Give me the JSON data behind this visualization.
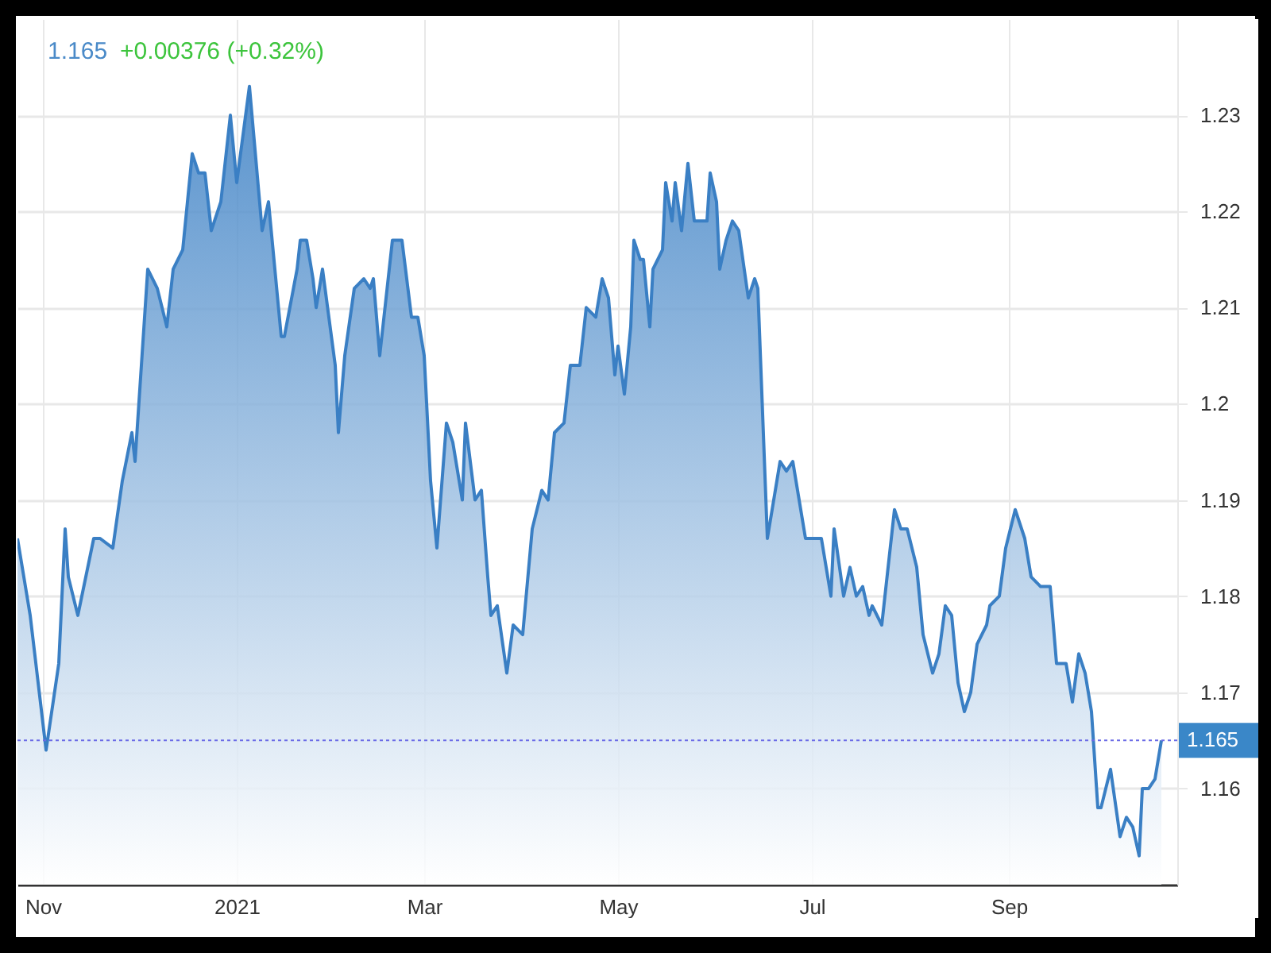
{
  "chart_data": {
    "type": "area",
    "annotations": [
      "1.165",
      "+0.00376 (+0.32%)"
    ],
    "x": [
      "2020-10-24",
      "2020-10-28",
      "2020-11-02",
      "2020-11-06",
      "2020-11-08",
      "2020-11-09",
      "2020-11-12",
      "2020-11-17",
      "2020-11-19",
      "2020-11-23",
      "2020-11-26",
      "2020-11-29",
      "2020-11-30",
      "2020-12-04",
      "2020-12-07",
      "2020-12-10",
      "2020-12-12",
      "2020-12-15",
      "2020-12-18",
      "2020-12-20",
      "2020-12-22",
      "2020-12-24",
      "2020-12-27",
      "2020-12-30",
      "2021-01-01",
      "2021-01-05",
      "2021-01-09",
      "2021-01-11",
      "2021-01-15",
      "2021-01-16",
      "2021-01-20",
      "2021-01-21",
      "2021-01-23",
      "2021-01-25",
      "2021-01-26",
      "2021-01-28",
      "2021-02-01",
      "2021-02-02",
      "2021-02-04",
      "2021-02-07",
      "2021-02-10",
      "2021-02-12",
      "2021-02-13",
      "2021-02-15",
      "2021-02-19",
      "2021-02-22",
      "2021-02-25",
      "2021-02-27",
      "2021-03-01",
      "2021-03-03",
      "2021-03-05",
      "2021-03-08",
      "2021-03-10",
      "2021-03-13",
      "2021-03-14",
      "2021-03-17",
      "2021-03-19",
      "2021-03-21",
      "2021-03-22",
      "2021-03-24",
      "2021-03-27",
      "2021-03-29",
      "2021-04-01",
      "2021-04-04",
      "2021-04-07",
      "2021-04-09",
      "2021-04-11",
      "2021-04-14",
      "2021-04-16",
      "2021-04-19",
      "2021-04-21",
      "2021-04-24",
      "2021-04-26",
      "2021-04-28",
      "2021-04-30",
      "2021-05-01",
      "2021-05-03",
      "2021-05-05",
      "2021-05-06",
      "2021-05-08",
      "2021-05-09",
      "2021-05-11",
      "2021-05-12",
      "2021-05-15",
      "2021-05-16",
      "2021-05-18",
      "2021-05-19",
      "2021-05-21",
      "2021-05-23",
      "2021-05-25",
      "2021-05-29",
      "2021-05-30",
      "2021-06-01",
      "2021-06-02",
      "2021-06-04",
      "2021-06-06",
      "2021-06-08",
      "2021-06-11",
      "2021-06-13",
      "2021-06-14",
      "2021-06-17",
      "2021-06-21",
      "2021-06-23",
      "2021-06-25",
      "2021-06-29",
      "2021-07-02",
      "2021-07-04",
      "2021-07-07",
      "2021-07-08",
      "2021-07-11",
      "2021-07-13",
      "2021-07-15",
      "2021-07-17",
      "2021-07-19",
      "2021-07-20",
      "2021-07-23",
      "2021-07-25",
      "2021-07-27",
      "2021-07-29",
      "2021-07-31",
      "2021-08-03",
      "2021-08-05",
      "2021-08-08",
      "2021-08-10",
      "2021-08-12",
      "2021-08-14",
      "2021-08-16",
      "2021-08-18",
      "2021-08-20",
      "2021-08-22",
      "2021-08-25",
      "2021-08-26",
      "2021-08-29",
      "2021-08-31",
      "2021-09-03",
      "2021-09-06",
      "2021-09-08",
      "2021-09-11",
      "2021-09-13",
      "2021-09-14",
      "2021-09-16",
      "2021-09-19",
      "2021-09-21",
      "2021-09-23",
      "2021-09-25",
      "2021-09-27",
      "2021-09-29",
      "2021-09-30",
      "2021-10-03",
      "2021-10-06",
      "2021-10-08",
      "2021-10-10",
      "2021-10-12",
      "2021-10-13",
      "2021-10-15",
      "2021-10-17",
      "2021-10-19"
    ],
    "series": [
      {
        "color": "#3a7fc4",
        "values": [
          1.186,
          1.178,
          1.164,
          1.173,
          1.187,
          1.182,
          1.178,
          1.186,
          1.186,
          1.185,
          1.192,
          1.197,
          1.194,
          1.214,
          1.212,
          1.208,
          1.214,
          1.216,
          1.226,
          1.224,
          1.224,
          1.218,
          1.221,
          1.23,
          1.223,
          1.233,
          1.218,
          1.221,
          1.207,
          1.207,
          1.214,
          1.217,
          1.217,
          1.213,
          1.21,
          1.214,
          1.204,
          1.197,
          1.205,
          1.212,
          1.213,
          1.212,
          1.213,
          1.205,
          1.217,
          1.217,
          1.209,
          1.209,
          1.205,
          1.192,
          1.185,
          1.198,
          1.196,
          1.19,
          1.198,
          1.19,
          1.191,
          1.182,
          1.178,
          1.179,
          1.172,
          1.177,
          1.176,
          1.187,
          1.191,
          1.19,
          1.197,
          1.198,
          1.204,
          1.204,
          1.21,
          1.209,
          1.213,
          1.211,
          1.203,
          1.206,
          1.201,
          1.208,
          1.217,
          1.215,
          1.215,
          1.208,
          1.214,
          1.216,
          1.223,
          1.219,
          1.223,
          1.218,
          1.225,
          1.219,
          1.219,
          1.224,
          1.221,
          1.214,
          1.217,
          1.219,
          1.218,
          1.211,
          1.213,
          1.212,
          1.186,
          1.194,
          1.193,
          1.194,
          1.186,
          1.186,
          1.186,
          1.18,
          1.187,
          1.18,
          1.183,
          1.18,
          1.181,
          1.178,
          1.179,
          1.177,
          1.183,
          1.189,
          1.187,
          1.187,
          1.183,
          1.176,
          1.172,
          1.174,
          1.179,
          1.178,
          1.171,
          1.168,
          1.17,
          1.175,
          1.177,
          1.179,
          1.18,
          1.185,
          1.189,
          1.186,
          1.182,
          1.181,
          1.181,
          1.181,
          1.173,
          1.173,
          1.169,
          1.174,
          1.172,
          1.168,
          1.158,
          1.158,
          1.162,
          1.155,
          1.157,
          1.156,
          1.153,
          1.16,
          1.16,
          1.161,
          1.165
        ]
      }
    ],
    "xlim": [
      "2020-10-24",
      "2021-10-24"
    ],
    "xticks": [
      {
        "value": "2020-11-01",
        "label": "Nov"
      },
      {
        "value": "2021-01-01",
        "label": "2021"
      },
      {
        "value": "2021-03-01",
        "label": "Mar"
      },
      {
        "value": "2021-05-01",
        "label": "May"
      },
      {
        "value": "2021-07-01",
        "label": "Jul"
      },
      {
        "value": "2021-09-01",
        "label": "Sep"
      }
    ],
    "ylim": [
      1.15,
      1.24
    ],
    "yticks": [
      1.16,
      1.17,
      1.18,
      1.19,
      1.2,
      1.21,
      1.22,
      1.23
    ],
    "ref_lines": [
      {
        "axis": "y",
        "value": 1.165,
        "label": "1.165",
        "color": "#6a6ae6",
        "line_style": "dotted"
      }
    ],
    "grid": true
  }
}
